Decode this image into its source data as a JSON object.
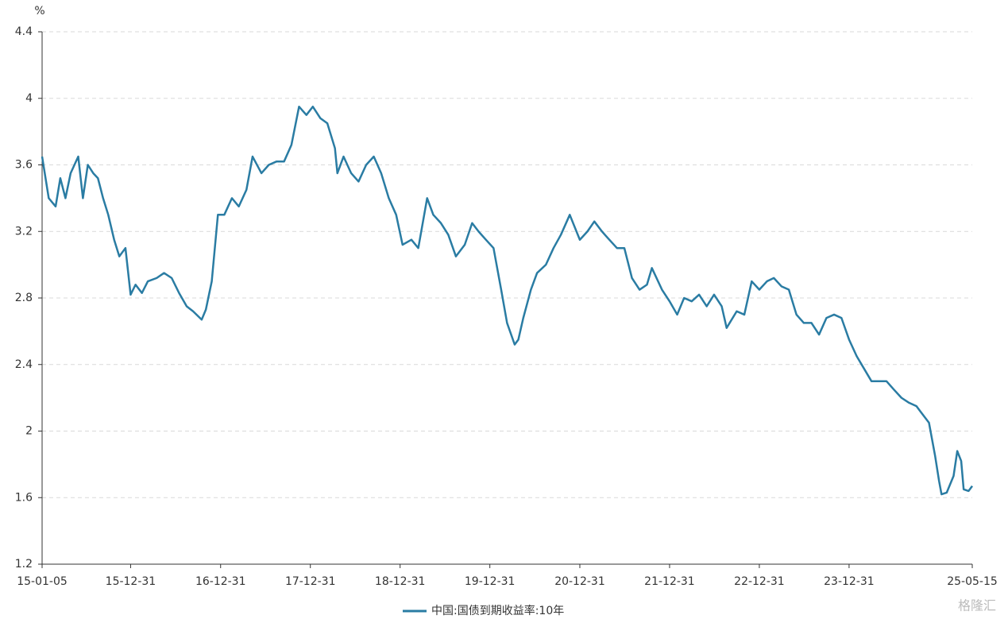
{
  "chart_data": {
    "type": "line",
    "unit_label": "%",
    "watermark": "格隆汇",
    "x": [
      "15-01-05",
      "15-02-01",
      "15-03-01",
      "15-03-20",
      "15-04-10",
      "15-05-01",
      "15-06-01",
      "15-06-20",
      "15-07-10",
      "15-08-01",
      "15-08-20",
      "15-09-10",
      "15-10-01",
      "15-10-25",
      "15-11-15",
      "15-12-10",
      "15-12-31",
      "16-01-20",
      "16-02-15",
      "16-03-10",
      "16-04-15",
      "16-05-15",
      "16-06-15",
      "16-07-15",
      "16-08-15",
      "16-09-10",
      "16-10-15",
      "16-11-01",
      "16-11-25",
      "16-12-20",
      "17-01-15",
      "17-02-15",
      "17-03-15",
      "17-04-15",
      "17-05-10",
      "17-06-15",
      "17-07-15",
      "17-08-15",
      "17-09-15",
      "17-10-15",
      "17-11-15",
      "17-12-15",
      "18-01-10",
      "18-02-10",
      "18-03-10",
      "18-04-10",
      "18-04-20",
      "18-05-15",
      "18-06-15",
      "18-07-15",
      "18-08-15",
      "18-09-15",
      "18-10-15",
      "18-11-15",
      "18-12-15",
      "19-01-10",
      "19-02-15",
      "19-03-15",
      "19-04-20",
      "19-05-15",
      "19-06-15",
      "19-07-15",
      "19-08-15",
      "19-09-20",
      "19-10-20",
      "19-11-15",
      "19-12-15",
      "20-01-15",
      "20-02-15",
      "20-03-10",
      "20-04-10",
      "20-04-25",
      "20-05-15",
      "20-06-15",
      "20-07-10",
      "20-08-15",
      "20-09-15",
      "20-10-15",
      "20-11-20",
      "20-12-31",
      "21-01-31",
      "21-02-28",
      "21-03-31",
      "21-04-30",
      "21-05-31",
      "21-06-30",
      "21-07-31",
      "21-08-31",
      "21-09-30",
      "21-10-20",
      "21-11-30",
      "21-12-31",
      "22-01-31",
      "22-02-28",
      "22-03-31",
      "22-04-30",
      "22-05-31",
      "22-06-30",
      "22-07-31",
      "22-08-20",
      "22-09-30",
      "22-10-31",
      "22-11-30",
      "22-12-31",
      "23-01-31",
      "23-02-28",
      "23-03-31",
      "23-04-30",
      "23-05-31",
      "23-06-30",
      "23-07-31",
      "23-08-31",
      "23-09-30",
      "23-10-31",
      "23-11-30",
      "23-12-31",
      "24-01-31",
      "24-02-28",
      "24-03-31",
      "24-04-30",
      "24-05-31",
      "24-06-30",
      "24-07-31",
      "24-08-31",
      "24-09-30",
      "24-10-15",
      "24-11-20",
      "24-12-15",
      "24-12-31",
      "25-01-10",
      "25-01-31",
      "25-02-28",
      "25-03-15",
      "25-03-31",
      "25-04-10",
      "25-04-30",
      "25-05-15"
    ],
    "series": [
      {
        "name": "中国:国债到期收益率:10年",
        "color": "#2a7ca3",
        "values": [
          3.65,
          3.4,
          3.35,
          3.52,
          3.4,
          3.55,
          3.65,
          3.4,
          3.6,
          3.55,
          3.52,
          3.4,
          3.3,
          3.15,
          3.05,
          3.1,
          2.82,
          2.88,
          2.83,
          2.9,
          2.92,
          2.95,
          2.92,
          2.83,
          2.75,
          2.72,
          2.67,
          2.73,
          2.9,
          3.3,
          3.3,
          3.4,
          3.35,
          3.45,
          3.65,
          3.55,
          3.6,
          3.62,
          3.62,
          3.72,
          3.95,
          3.9,
          3.95,
          3.88,
          3.85,
          3.7,
          3.55,
          3.65,
          3.55,
          3.5,
          3.6,
          3.65,
          3.55,
          3.4,
          3.3,
          3.12,
          3.15,
          3.1,
          3.4,
          3.3,
          3.25,
          3.18,
          3.05,
          3.12,
          3.25,
          3.2,
          3.15,
          3.1,
          2.85,
          2.65,
          2.52,
          2.55,
          2.68,
          2.85,
          2.95,
          3.0,
          3.1,
          3.18,
          3.3,
          3.15,
          3.2,
          3.26,
          3.2,
          3.15,
          3.1,
          3.1,
          2.92,
          2.85,
          2.88,
          2.98,
          2.85,
          2.78,
          2.7,
          2.8,
          2.78,
          2.82,
          2.75,
          2.82,
          2.75,
          2.62,
          2.72,
          2.7,
          2.9,
          2.85,
          2.9,
          2.92,
          2.87,
          2.85,
          2.7,
          2.65,
          2.65,
          2.58,
          2.68,
          2.7,
          2.68,
          2.55,
          2.45,
          2.38,
          2.3,
          2.3,
          2.3,
          2.25,
          2.2,
          2.17,
          2.15,
          2.12,
          2.05,
          1.85,
          1.7,
          1.62,
          1.63,
          1.73,
          1.88,
          1.82,
          1.65,
          1.64,
          1.67
        ]
      }
    ],
    "xlim": [
      "15-01-05",
      "25-05-15"
    ],
    "xticks": [
      "15-01-05",
      "15-12-31",
      "16-12-31",
      "17-12-31",
      "18-12-31",
      "19-12-31",
      "20-12-31",
      "21-12-31",
      "22-12-31",
      "23-12-31",
      "25-05-15"
    ],
    "ylim": [
      1.2,
      4.4
    ],
    "yticks": [
      1.2,
      1.6,
      2,
      2.4,
      2.8,
      3.2,
      3.6,
      4,
      4.4
    ],
    "grid": true
  }
}
